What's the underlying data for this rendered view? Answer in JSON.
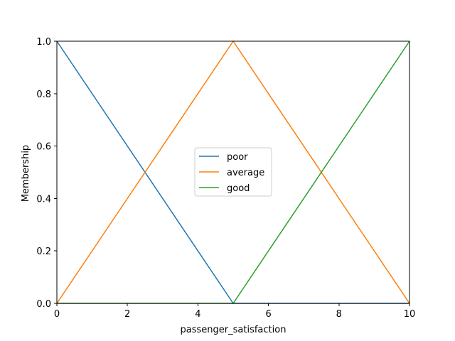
{
  "chart_data": {
    "type": "line",
    "title": "",
    "xlabel": "passenger_satisfaction",
    "ylabel": "Membership",
    "xlim": [
      0,
      10
    ],
    "ylim": [
      0,
      1
    ],
    "xticks": [
      0,
      2,
      4,
      6,
      8,
      10
    ],
    "yticks": [
      0.0,
      0.2,
      0.4,
      0.6,
      0.8,
      1.0
    ],
    "xtick_labels": [
      "0",
      "2",
      "4",
      "6",
      "8",
      "10"
    ],
    "ytick_labels": [
      "0.0",
      "0.2",
      "0.4",
      "0.6",
      "0.8",
      "1.0"
    ],
    "grid": false,
    "legend_position": "center",
    "series": [
      {
        "name": "poor",
        "color": "#1f77b4",
        "x": [
          0,
          5,
          10
        ],
        "y": [
          1,
          0,
          0
        ]
      },
      {
        "name": "average",
        "color": "#ff7f0e",
        "x": [
          0,
          5,
          10
        ],
        "y": [
          0,
          1,
          0
        ]
      },
      {
        "name": "good",
        "color": "#2ca02c",
        "x": [
          0,
          5,
          10
        ],
        "y": [
          0,
          0,
          1
        ]
      }
    ]
  }
}
